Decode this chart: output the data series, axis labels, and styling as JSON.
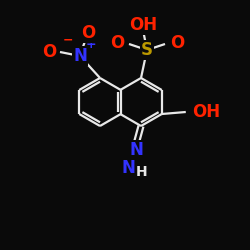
{
  "bg_color": "#0a0a0a",
  "bond_color": "#e8e8e8",
  "bond_width": 1.6,
  "atom_colors": {
    "C": "#e8e8e8",
    "N": "#3333ff",
    "O": "#ff2200",
    "S": "#bb9900",
    "H": "#e8e8e8"
  },
  "font_size_main": 10,
  "font_size_small": 8,
  "font_size_label": 9
}
